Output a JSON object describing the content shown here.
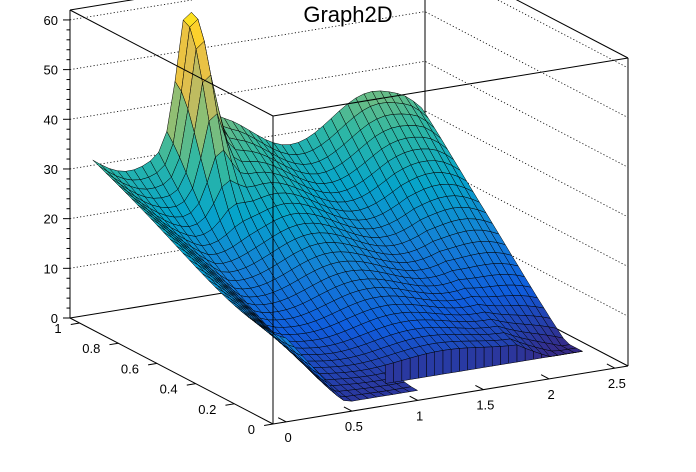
{
  "chart_data": {
    "type": "surface",
    "title": "Graph2D",
    "xlabel": "",
    "ylabel": "",
    "zlabel": "",
    "xlim": [
      -0.1,
      2.6
    ],
    "ylim": [
      0,
      1.05
    ],
    "zlim": [
      0,
      62
    ],
    "x_ticks": [
      "0",
      "0.5",
      "1",
      "1.5",
      "2",
      "2.5"
    ],
    "y_ticks": [
      "0",
      "0.2",
      "0.4",
      "0.6",
      "0.8",
      "1"
    ],
    "z_ticks": [
      "0",
      "10",
      "20",
      "30",
      "40",
      "50",
      "60"
    ],
    "grid": true,
    "colormap": [
      "#352a87",
      "#0f5cdd",
      "#1481d6",
      "#06a4ca",
      "#2eb7a4",
      "#87bf77",
      "#d1bb59",
      "#fec832",
      "#f9fb0e"
    ],
    "surface_features": {
      "back_edge_level": 36,
      "front_left_level": 17,
      "low_trough_level": 2,
      "peaks": [
        {
          "x": 0.72,
          "y": 0.97,
          "z": 62
        },
        {
          "x": 2.4,
          "y": 0.95,
          "z": 37
        }
      ],
      "empty_region": {
        "x_from": 1.0,
        "y_below": 0.16
      }
    }
  }
}
